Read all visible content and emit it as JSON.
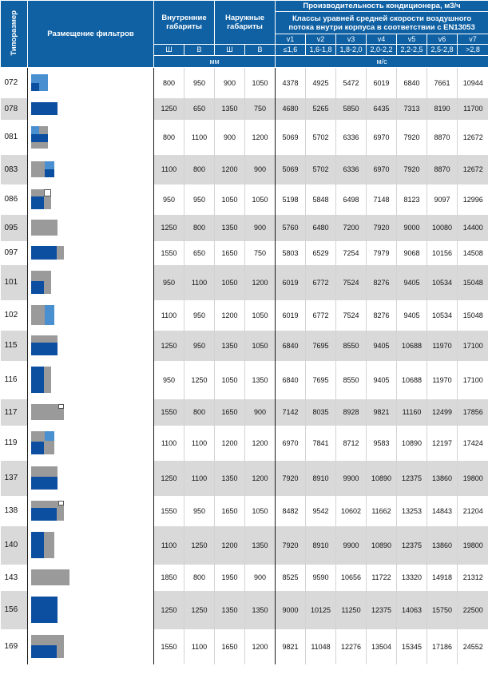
{
  "header": {
    "col_size": "Типоразмер",
    "col_filters": "Размещение фильтров",
    "inner": "Внутренние габариты",
    "outer": "Наружные габариты",
    "capacity": "Производительность кондиционера, м3/ч",
    "classes": "Классы уравней средней скорости воздушного потока внутри корпуса в соответствии с EN13053",
    "dims": [
      "Ш",
      "В",
      "Ш",
      "В"
    ],
    "classes_v": [
      "v1",
      "v2",
      "v3",
      "v4",
      "v5",
      "v6",
      "v7"
    ],
    "speeds": [
      "≤1,6",
      "1,6-1,8",
      "1,8-2,0",
      "2,0-2,2",
      "2,2-2,5",
      "2,5-2,8",
      ">2,8"
    ],
    "unit_mm": "мм",
    "unit_ms": "м/с"
  },
  "rows": [
    {
      "code": "072",
      "w": "800",
      "h": "950",
      "ow": "900",
      "oh": "1050",
      "v": [
        "4378",
        "4925",
        "5472",
        "6019",
        "6840",
        "7661",
        "10944"
      ],
      "icon": "072"
    },
    {
      "code": "078",
      "w": "1250",
      "h": "650",
      "ow": "1350",
      "oh": "750",
      "v": [
        "4680",
        "5265",
        "5850",
        "6435",
        "7313",
        "8190",
        "11700"
      ],
      "icon": "078"
    },
    {
      "code": "081",
      "w": "800",
      "h": "1100",
      "ow": "900",
      "oh": "1200",
      "v": [
        "5069",
        "5702",
        "6336",
        "6970",
        "7920",
        "8870",
        "12672"
      ],
      "icon": "081"
    },
    {
      "code": "083",
      "w": "1100",
      "h": "800",
      "ow": "1200",
      "oh": "900",
      "v": [
        "5069",
        "5702",
        "6336",
        "6970",
        "7920",
        "8870",
        "12672"
      ],
      "icon": "083"
    },
    {
      "code": "086",
      "w": "950",
      "h": "950",
      "ow": "1050",
      "oh": "1050",
      "v": [
        "5198",
        "5848",
        "6498",
        "7148",
        "8123",
        "9097",
        "12996"
      ],
      "icon": "086"
    },
    {
      "code": "095",
      "w": "1250",
      "h": "800",
      "ow": "1350",
      "oh": "900",
      "v": [
        "5760",
        "6480",
        "7200",
        "7920",
        "9000",
        "10080",
        "14400"
      ],
      "icon": "095"
    },
    {
      "code": "097",
      "w": "1550",
      "h": "650",
      "ow": "1650",
      "oh": "750",
      "v": [
        "5803",
        "6529",
        "7254",
        "7979",
        "9068",
        "10156",
        "14508"
      ],
      "icon": "097"
    },
    {
      "code": "101",
      "w": "950",
      "h": "1100",
      "ow": "1050",
      "oh": "1200",
      "v": [
        "6019",
        "6772",
        "7524",
        "8276",
        "9405",
        "10534",
        "15048"
      ],
      "icon": "101"
    },
    {
      "code": "102",
      "w": "1100",
      "h": "950",
      "ow": "1200",
      "oh": "1050",
      "v": [
        "6019",
        "6772",
        "7524",
        "8276",
        "9405",
        "10534",
        "15048"
      ],
      "icon": "102"
    },
    {
      "code": "115",
      "w": "1250",
      "h": "950",
      "ow": "1350",
      "oh": "1050",
      "v": [
        "6840",
        "7695",
        "8550",
        "9405",
        "10688",
        "11970",
        "17100"
      ],
      "icon": "115"
    },
    {
      "code": "116",
      "w": "950",
      "h": "1250",
      "ow": "1050",
      "oh": "1350",
      "v": [
        "6840",
        "7695",
        "8550",
        "9405",
        "10688",
        "11970",
        "17100"
      ],
      "icon": "116"
    },
    {
      "code": "117",
      "w": "1550",
      "h": "800",
      "ow": "1650",
      "oh": "900",
      "v": [
        "7142",
        "8035",
        "8928",
        "9821",
        "11160",
        "12499",
        "17856"
      ],
      "icon": "117"
    },
    {
      "code": "119",
      "w": "1100",
      "h": "1100",
      "ow": "1200",
      "oh": "1200",
      "v": [
        "6970",
        "7841",
        "8712",
        "9583",
        "10890",
        "12197",
        "17424"
      ],
      "icon": "119"
    },
    {
      "code": "137",
      "w": "1250",
      "h": "1100",
      "ow": "1350",
      "oh": "1200",
      "v": [
        "7920",
        "8910",
        "9900",
        "10890",
        "12375",
        "13860",
        "19800"
      ],
      "icon": "137"
    },
    {
      "code": "138",
      "w": "1550",
      "h": "950",
      "ow": "1650",
      "oh": "1050",
      "v": [
        "8482",
        "9542",
        "10602",
        "11662",
        "13253",
        "14843",
        "21204"
      ],
      "icon": "138"
    },
    {
      "code": "140",
      "w": "1100",
      "h": "1250",
      "ow": "1200",
      "oh": "1350",
      "v": [
        "7920",
        "8910",
        "9900",
        "10890",
        "12375",
        "13860",
        "19800"
      ],
      "icon": "140"
    },
    {
      "code": "143",
      "w": "1850",
      "h": "800",
      "ow": "1950",
      "oh": "900",
      "v": [
        "8525",
        "9590",
        "10656",
        "11722",
        "13320",
        "14918",
        "21312"
      ],
      "icon": "143"
    },
    {
      "code": "156",
      "w": "1250",
      "h": "1250",
      "ow": "1350",
      "oh": "1350",
      "v": [
        "9000",
        "10125",
        "11250",
        "12375",
        "14063",
        "15750",
        "22500"
      ],
      "icon": "156"
    },
    {
      "code": "169",
      "w": "1550",
      "h": "1100",
      "ow": "1650",
      "oh": "1200",
      "v": [
        "9821",
        "11048",
        "12276",
        "13504",
        "15345",
        "17186",
        "24552"
      ],
      "icon": "169"
    }
  ]
}
